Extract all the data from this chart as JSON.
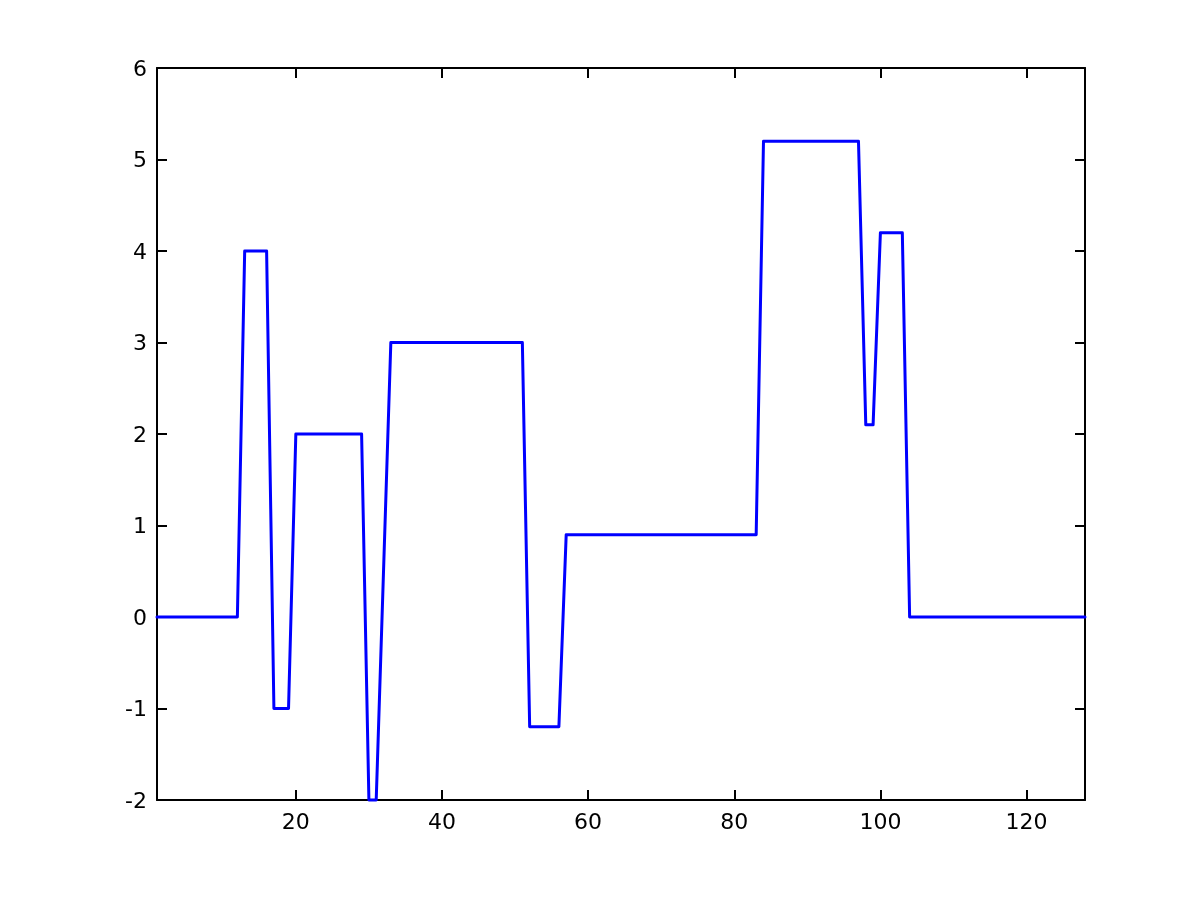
{
  "chart_data": {
    "type": "line",
    "x": [
      1,
      12,
      13,
      16,
      17,
      19,
      20,
      29,
      30,
      31,
      33,
      51,
      52,
      56,
      57,
      83,
      84,
      97,
      98,
      99,
      100,
      103,
      104,
      128
    ],
    "series": [
      {
        "color": "#0000ff",
        "values": [
          0,
          0,
          4,
          4,
          -1,
          -1,
          2,
          2,
          -2,
          -2,
          3,
          3,
          -1.2,
          -1.2,
          0.9,
          0.9,
          5.2,
          5.2,
          2.1,
          2.1,
          4.2,
          4.2,
          0,
          0
        ]
      }
    ],
    "xlim": [
      1,
      128
    ],
    "xticks": [
      20,
      40,
      60,
      80,
      100,
      120
    ],
    "ylim": [
      -2,
      6
    ],
    "yticks": [
      -2,
      -1,
      0,
      1,
      2,
      3,
      4,
      5,
      6
    ],
    "grid": false,
    "marker": "none",
    "line_style": "solid"
  }
}
